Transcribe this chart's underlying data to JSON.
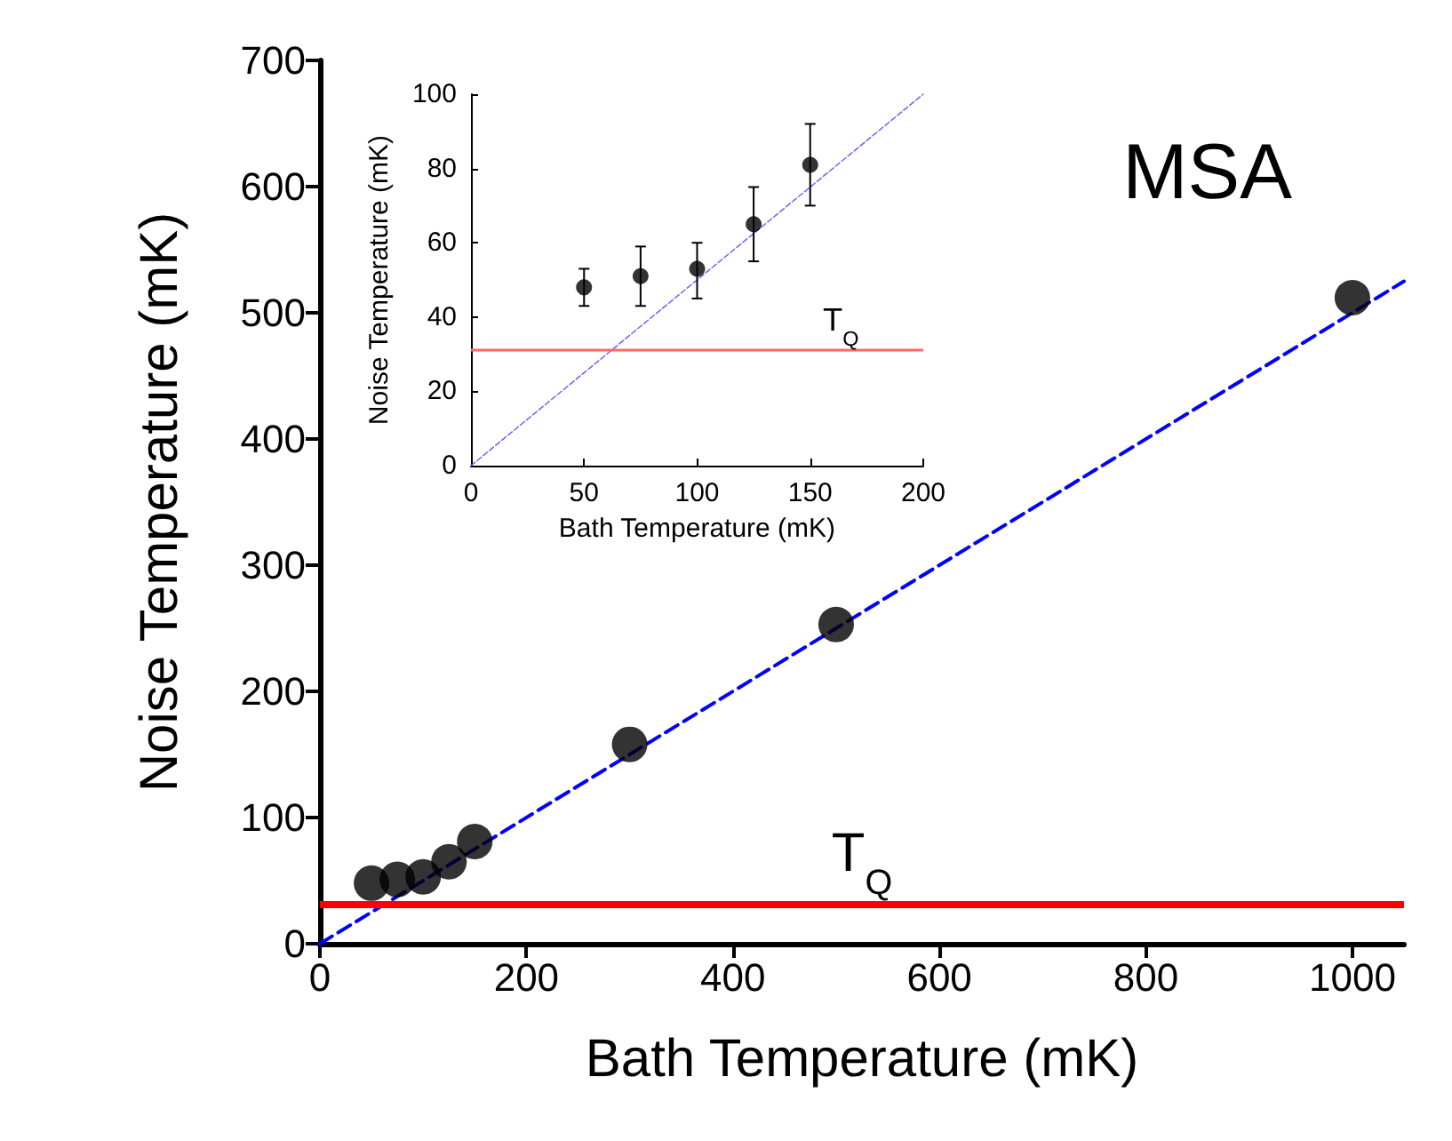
{
  "chart_data": [
    {
      "type": "scatter",
      "xlabel": "Bath Temperature (mK)",
      "ylabel": "Noise Temperature (mK)",
      "xlim": [
        0,
        1050
      ],
      "xticks": [
        0,
        200,
        400,
        600,
        800,
        1000
      ],
      "ylim": [
        0,
        700
      ],
      "yticks": [
        0,
        100,
        200,
        300,
        400,
        500,
        600,
        700
      ],
      "grid": false,
      "marker": "circle",
      "series": [
        {
          "type": "line",
          "x": [
            0,
            1050
          ],
          "values": [
            0,
            525
          ],
          "color": "#0000ff",
          "line_style": "dashed",
          "marker": "none"
        },
        {
          "x": [
            50,
            75,
            100,
            125,
            150,
            300,
            500,
            1000
          ],
          "values": [
            48,
            51,
            53,
            65,
            81,
            158,
            253,
            512
          ],
          "color": "#000000"
        }
      ],
      "ref_lines": [
        {
          "axis": "y",
          "value": 31,
          "label": "T$_{Q}$",
          "color": "#ff0000"
        }
      ],
      "annotations": [
        "MSA"
      ]
    },
    {
      "type": "scatter",
      "xlabel": "Bath Temperature (mK)",
      "ylabel": "Noise Temperature (mK)",
      "xlim": [
        0,
        200
      ],
      "xticks": [
        0,
        50,
        100,
        150,
        200
      ],
      "ylim": [
        0,
        100
      ],
      "yticks": [
        0,
        20,
        40,
        60,
        80,
        100
      ],
      "grid": false,
      "marker": "circle",
      "series": [
        {
          "type": "line",
          "x": [
            0,
            200
          ],
          "values": [
            0,
            100
          ],
          "color": "#6666ff",
          "line_style": "dashed",
          "marker": "none"
        },
        {
          "x": [
            50,
            75,
            100,
            125,
            150
          ],
          "values": [
            48,
            51,
            53,
            65,
            81
          ],
          "errors": [
            [
              43,
              53
            ],
            [
              43,
              59
            ],
            [
              45,
              60
            ],
            [
              55,
              75
            ],
            [
              70,
              92
            ]
          ],
          "color": "#000000"
        }
      ],
      "ref_lines": [
        {
          "axis": "y",
          "value": 31,
          "label": "T$_{Q}$",
          "color": "#ff6666"
        }
      ]
    }
  ]
}
